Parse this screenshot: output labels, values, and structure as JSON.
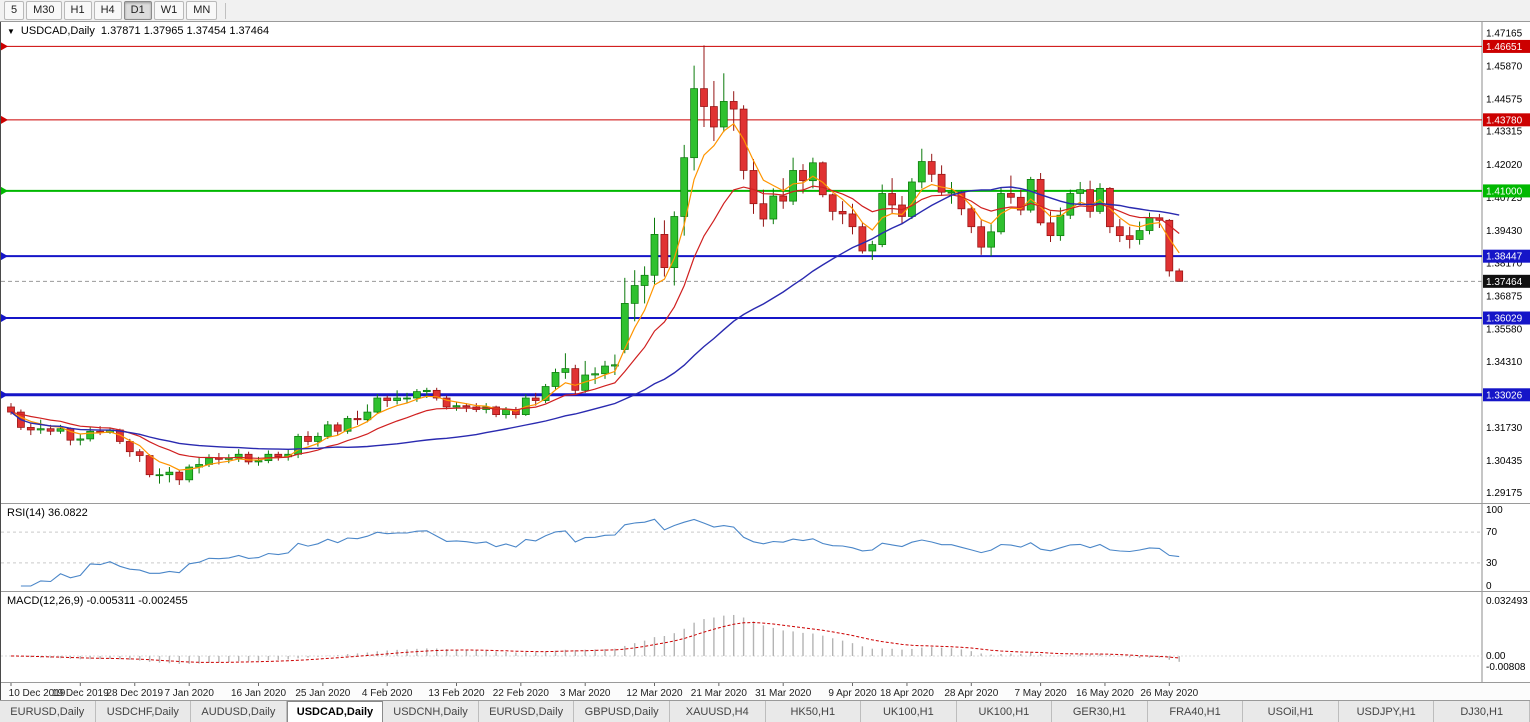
{
  "toolbar": {
    "timeframes": [
      {
        "label": "5",
        "active": false
      },
      {
        "label": "M30",
        "active": false
      },
      {
        "label": "H1",
        "active": false
      },
      {
        "label": "H4",
        "active": false
      },
      {
        "label": "D1",
        "active": true
      },
      {
        "label": "W1",
        "active": false
      },
      {
        "label": "MN",
        "active": false
      }
    ]
  },
  "chart": {
    "collapse_icon": "▼",
    "title": {
      "symbol": "USDCAD,Daily",
      "ohlc": "1.37871 1.37965 1.37454 1.37464"
    }
  },
  "chart_data": {
    "type": "candlestick",
    "symbol": "USDCAD",
    "timeframe": "Daily",
    "ohlc_current": {
      "open": 1.37871,
      "high": 1.37965,
      "low": 1.37454,
      "close": 1.37464
    },
    "price_range": {
      "min": 1.2895,
      "max": 1.4745
    },
    "current_price": 1.37464,
    "price_axis_labels": [
      1.47165,
      1.4587,
      1.44575,
      1.43315,
      1.4202,
      1.40725,
      1.3943,
      1.3817,
      1.36875,
      1.3558,
      1.3431,
      1.33015,
      1.3173,
      1.30435,
      1.29175
    ],
    "horizontal_lines": [
      {
        "price": 1.46651,
        "color": "#cc0000",
        "width": 1
      },
      {
        "price": 1.4378,
        "color": "#cc0000",
        "width": 1
      },
      {
        "price": 1.41,
        "color": "#00b800",
        "width": 2
      },
      {
        "price": 1.38447,
        "color": "#1515c8",
        "width": 2
      },
      {
        "price": 1.36029,
        "color": "#1515c8",
        "width": 2
      },
      {
        "price": 1.33026,
        "color": "#1515c8",
        "width": 3
      }
    ],
    "colors": {
      "bull": "#2fc12f",
      "bull_border": "#0b7a0b",
      "bear": "#e03232",
      "bear_border": "#941414",
      "current_price_badge": "#101010"
    },
    "moving_averages": [
      {
        "name": "fast",
        "method": "ema",
        "period": 5,
        "color": "#ff9500",
        "width": 1.2
      },
      {
        "name": "medium",
        "method": "ema",
        "period": 13,
        "color": "#d02020",
        "width": 1.2
      },
      {
        "name": "slow",
        "method": "sma",
        "period": 34,
        "color": "#2a2ab0",
        "width": 1.4
      }
    ],
    "candles": [
      [
        1.3255,
        1.327,
        1.3225,
        1.3235
      ],
      [
        1.3235,
        1.3245,
        1.3165,
        1.3175
      ],
      [
        1.3175,
        1.319,
        1.3145,
        1.3165
      ],
      [
        1.3165,
        1.3205,
        1.315,
        1.317
      ],
      [
        1.317,
        1.3185,
        1.3145,
        1.316
      ],
      [
        1.316,
        1.3185,
        1.315,
        1.317
      ],
      [
        1.317,
        1.3175,
        1.3105,
        1.3125
      ],
      [
        1.3125,
        1.315,
        1.3105,
        1.313
      ],
      [
        1.313,
        1.3175,
        1.312,
        1.316
      ],
      [
        1.316,
        1.318,
        1.3145,
        1.3155
      ],
      [
        1.3155,
        1.3175,
        1.315,
        1.3165
      ],
      [
        1.3165,
        1.317,
        1.311,
        1.312
      ],
      [
        1.312,
        1.313,
        1.306,
        1.308
      ],
      [
        1.308,
        1.309,
        1.304,
        1.3065
      ],
      [
        1.3065,
        1.307,
        1.298,
        1.299
      ],
      [
        1.299,
        1.3015,
        1.2955,
        1.299
      ],
      [
        1.299,
        1.302,
        1.296,
        1.3
      ],
      [
        1.3,
        1.301,
        1.295,
        1.297
      ],
      [
        1.297,
        1.303,
        1.296,
        1.302
      ],
      [
        1.302,
        1.306,
        1.2995,
        1.303
      ],
      [
        1.303,
        1.307,
        1.302,
        1.3055
      ],
      [
        1.3055,
        1.3075,
        1.303,
        1.305
      ],
      [
        1.305,
        1.307,
        1.3035,
        1.3055
      ],
      [
        1.3055,
        1.309,
        1.304,
        1.307
      ],
      [
        1.307,
        1.308,
        1.303,
        1.304
      ],
      [
        1.304,
        1.306,
        1.3025,
        1.3045
      ],
      [
        1.3045,
        1.3085,
        1.3035,
        1.307
      ],
      [
        1.307,
        1.308,
        1.3045,
        1.306
      ],
      [
        1.306,
        1.309,
        1.3045,
        1.307
      ],
      [
        1.307,
        1.315,
        1.3055,
        1.314
      ],
      [
        1.314,
        1.316,
        1.3105,
        1.312
      ],
      [
        1.312,
        1.3155,
        1.31,
        1.314
      ],
      [
        1.314,
        1.32,
        1.313,
        1.3185
      ],
      [
        1.3185,
        1.3195,
        1.3145,
        1.316
      ],
      [
        1.316,
        1.322,
        1.315,
        1.321
      ],
      [
        1.321,
        1.324,
        1.3185,
        1.3205
      ],
      [
        1.3205,
        1.3265,
        1.3195,
        1.3235
      ],
      [
        1.3235,
        1.3305,
        1.323,
        1.329
      ],
      [
        1.329,
        1.33,
        1.3255,
        1.328
      ],
      [
        1.328,
        1.332,
        1.3265,
        1.329
      ],
      [
        1.329,
        1.331,
        1.327,
        1.329
      ],
      [
        1.329,
        1.3325,
        1.3275,
        1.3315
      ],
      [
        1.3315,
        1.333,
        1.329,
        1.332
      ],
      [
        1.332,
        1.333,
        1.328,
        1.329
      ],
      [
        1.329,
        1.33,
        1.3245,
        1.3255
      ],
      [
        1.3255,
        1.3275,
        1.324,
        1.326
      ],
      [
        1.326,
        1.327,
        1.3235,
        1.3255
      ],
      [
        1.3255,
        1.327,
        1.3235,
        1.3245
      ],
      [
        1.3245,
        1.327,
        1.323,
        1.3255
      ],
      [
        1.3255,
        1.326,
        1.3215,
        1.3225
      ],
      [
        1.3225,
        1.3255,
        1.321,
        1.3245
      ],
      [
        1.3245,
        1.3255,
        1.321,
        1.3225
      ],
      [
        1.3225,
        1.3305,
        1.322,
        1.329
      ],
      [
        1.329,
        1.331,
        1.326,
        1.328
      ],
      [
        1.328,
        1.3345,
        1.327,
        1.3335
      ],
      [
        1.3335,
        1.3405,
        1.332,
        1.339
      ],
      [
        1.339,
        1.3465,
        1.3365,
        1.3405
      ],
      [
        1.3405,
        1.342,
        1.3305,
        1.332
      ],
      [
        1.332,
        1.3435,
        1.331,
        1.338
      ],
      [
        1.338,
        1.341,
        1.3345,
        1.3385
      ],
      [
        1.3385,
        1.3435,
        1.3365,
        1.3415
      ],
      [
        1.3415,
        1.346,
        1.338,
        1.342
      ],
      [
        1.348,
        1.376,
        1.3465,
        1.366
      ],
      [
        1.366,
        1.379,
        1.359,
        1.373
      ],
      [
        1.373,
        1.3805,
        1.366,
        1.377
      ],
      [
        1.377,
        1.3995,
        1.3735,
        1.393
      ],
      [
        1.393,
        1.3985,
        1.3765,
        1.38
      ],
      [
        1.38,
        1.402,
        1.373,
        1.4
      ],
      [
        1.4,
        1.428,
        1.3925,
        1.423
      ],
      [
        1.423,
        1.459,
        1.418,
        1.45
      ],
      [
        1.45,
        1.4669,
        1.435,
        1.443
      ],
      [
        1.443,
        1.453,
        1.4295,
        1.435
      ],
      [
        1.435,
        1.456,
        1.433,
        1.445
      ],
      [
        1.445,
        1.449,
        1.4335,
        1.442
      ],
      [
        1.442,
        1.4435,
        1.4145,
        1.418
      ],
      [
        1.418,
        1.4225,
        1.401,
        1.405
      ],
      [
        1.405,
        1.4105,
        1.396,
        1.399
      ],
      [
        1.399,
        1.411,
        1.397,
        1.408
      ],
      [
        1.408,
        1.415,
        1.403,
        1.406
      ],
      [
        1.406,
        1.423,
        1.4045,
        1.418
      ],
      [
        1.418,
        1.4205,
        1.409,
        1.414
      ],
      [
        1.414,
        1.423,
        1.411,
        1.421
      ],
      [
        1.421,
        1.4215,
        1.4075,
        1.4085
      ],
      [
        1.4085,
        1.409,
        1.3985,
        1.402
      ],
      [
        1.402,
        1.406,
        1.397,
        1.401
      ],
      [
        1.401,
        1.405,
        1.393,
        1.396
      ],
      [
        1.396,
        1.3975,
        1.3855,
        1.3865
      ],
      [
        1.3865,
        1.3905,
        1.383,
        1.389
      ],
      [
        1.389,
        1.4125,
        1.388,
        1.409
      ],
      [
        1.409,
        1.415,
        1.401,
        1.4045
      ],
      [
        1.4045,
        1.408,
        1.397,
        1.4
      ],
      [
        1.4,
        1.415,
        1.399,
        1.4135
      ],
      [
        1.4135,
        1.4265,
        1.411,
        1.4215
      ],
      [
        1.4215,
        1.4245,
        1.4135,
        1.4165
      ],
      [
        1.4165,
        1.42,
        1.408,
        1.4095
      ],
      [
        1.4095,
        1.4135,
        1.405,
        1.4095
      ],
      [
        1.4095,
        1.41,
        1.4005,
        1.403
      ],
      [
        1.403,
        1.4045,
        1.3935,
        1.396
      ],
      [
        1.396,
        1.3985,
        1.385,
        1.388
      ],
      [
        1.388,
        1.397,
        1.3845,
        1.394
      ],
      [
        1.394,
        1.4115,
        1.393,
        1.409
      ],
      [
        1.409,
        1.416,
        1.405,
        1.4075
      ],
      [
        1.4075,
        1.4105,
        1.4005,
        1.4025
      ],
      [
        1.4025,
        1.4155,
        1.4015,
        1.4145
      ],
      [
        1.4145,
        1.417,
        1.3965,
        1.3975
      ],
      [
        1.3975,
        1.402,
        1.39,
        1.3925
      ],
      [
        1.3925,
        1.4035,
        1.3905,
        1.4005
      ],
      [
        1.4005,
        1.4105,
        1.399,
        1.409
      ],
      [
        1.409,
        1.4135,
        1.4045,
        1.4105
      ],
      [
        1.4105,
        1.414,
        1.3995,
        1.402
      ],
      [
        1.402,
        1.413,
        1.401,
        1.411
      ],
      [
        1.411,
        1.4115,
        1.3935,
        1.396
      ],
      [
        1.396,
        1.399,
        1.39,
        1.3925
      ],
      [
        1.3925,
        1.396,
        1.3875,
        1.391
      ],
      [
        1.391,
        1.398,
        1.389,
        1.3945
      ],
      [
        1.3945,
        1.4015,
        1.393,
        1.3995
      ],
      [
        1.3995,
        1.401,
        1.3955,
        1.3985
      ],
      [
        1.3985,
        1.399,
        1.3765,
        1.3787
      ],
      [
        1.37871,
        1.37965,
        1.37454,
        1.37464
      ]
    ],
    "date_ticks": [
      {
        "label": "10 Dec 2019",
        "i": 0
      },
      {
        "label": "19 Dec 2019",
        "i": 7
      },
      {
        "label": "28 Dec 2019",
        "i": 12.5
      },
      {
        "label": "7 Jan 2020",
        "i": 18
      },
      {
        "label": "16 Jan 2020",
        "i": 25
      },
      {
        "label": "25 Jan 2020",
        "i": 31.5
      },
      {
        "label": "4 Feb 2020",
        "i": 38
      },
      {
        "label": "13 Feb 2020",
        "i": 45
      },
      {
        "label": "22 Feb 2020",
        "i": 51.5
      },
      {
        "label": "3 Mar 2020",
        "i": 58
      },
      {
        "label": "12 Mar 2020",
        "i": 65
      },
      {
        "label": "21 Mar 2020",
        "i": 71.5
      },
      {
        "label": "31 Mar 2020",
        "i": 78
      },
      {
        "label": "9 Apr 2020",
        "i": 85
      },
      {
        "label": "18 Apr 2020",
        "i": 90.5
      },
      {
        "label": "28 Apr 2020",
        "i": 97
      },
      {
        "label": "7 May 2020",
        "i": 104
      },
      {
        "label": "16 May 2020",
        "i": 110.5
      },
      {
        "label": "26 May 2020",
        "i": 117
      }
    ],
    "rsi": {
      "title": "RSI(14) 36.0822",
      "period": 14,
      "value": 36.0822,
      "color": "#4a86c8",
      "axis": [
        {
          "text": "100",
          "value": 100
        },
        {
          "text": "70",
          "value": 70,
          "line": true
        },
        {
          "text": "30",
          "value": 30,
          "line": true
        },
        {
          "text": "0",
          "value": 0
        }
      ]
    },
    "macd": {
      "title": "MACD(12,26,9) -0.005311 -0.002455",
      "fast": 12,
      "slow": 26,
      "signal": 9,
      "macd_value": -0.005311,
      "signal_value": -0.002455,
      "hist_color": "#b4b4b4",
      "signal_color": "#cc0000",
      "range": [
        -0.017,
        0.045
      ],
      "axis": [
        {
          "text": "0.032493",
          "pin": "top"
        },
        {
          "text": "0.00",
          "value": 0
        },
        {
          "text": "-0.00808",
          "value": -0.00808
        }
      ]
    }
  },
  "tabs": [
    {
      "label": "EURUSD,Daily",
      "active": false
    },
    {
      "label": "USDCHF,Daily",
      "active": false
    },
    {
      "label": "AUDUSD,Daily",
      "active": false
    },
    {
      "label": "USDCAD,Daily",
      "active": true
    },
    {
      "label": "USDCNH,Daily",
      "active": false
    },
    {
      "label": "EURUSD,Daily",
      "active": false
    },
    {
      "label": "GBPUSD,Daily",
      "active": false
    },
    {
      "label": "XAUUSD,H4",
      "active": false
    },
    {
      "label": "HK50,H1",
      "active": false
    },
    {
      "label": "UK100,H1",
      "active": false
    },
    {
      "label": "UK100,H1",
      "active": false
    },
    {
      "label": "GER30,H1",
      "active": false
    },
    {
      "label": "FRA40,H1",
      "active": false
    },
    {
      "label": "USOil,H1",
      "active": false
    },
    {
      "label": "USDJPY,H1",
      "active": false
    },
    {
      "label": "DJ30,H1",
      "active": false
    }
  ]
}
